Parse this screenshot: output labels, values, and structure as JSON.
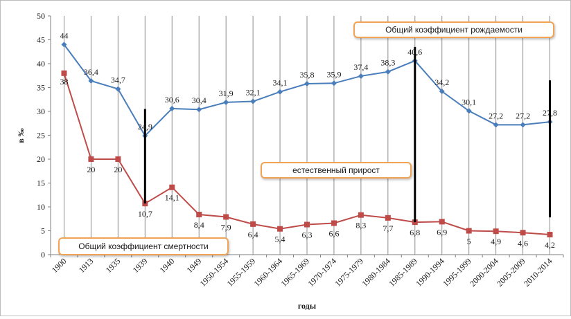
{
  "chart_data": {
    "type": "line",
    "title": "",
    "xlabel": "годы",
    "ylabel": "в ‰",
    "ylim": [
      0,
      50
    ],
    "ytick_step": 5,
    "grid": "vertical",
    "categories": [
      "1900",
      "1913",
      "1935",
      "1939",
      "1940",
      "1949",
      "1950-1954",
      "1955-1959",
      "1960-1964",
      "1965-1969",
      "1970-1974",
      "1975-1979",
      "1980-1984",
      "1985-1989",
      "1990-1994",
      "1995-1999",
      "2000-2004",
      "2005-2009",
      "2010-2014"
    ],
    "series": [
      {
        "name": "Общий коэффициент рождаемости",
        "color": "#4a7ebb",
        "marker": "diamond",
        "values": [
          44,
          36.4,
          34.7,
          24.9,
          30.6,
          30.4,
          31.9,
          32.1,
          34.1,
          35.8,
          35.9,
          37.4,
          38.3,
          40.6,
          34.2,
          30.1,
          27.2,
          27.2,
          27.8
        ],
        "labels": [
          "44",
          "36,4",
          "34,7",
          "24,9",
          "30,6",
          "30,4",
          "31,9",
          "32,1",
          "34,1",
          "35,8",
          "35,9",
          "37,4",
          "38,3",
          "40,6",
          "34,2",
          "30,1",
          "27,2",
          "27,2",
          "27,8"
        ]
      },
      {
        "name": "Общий коэффициент смертности",
        "color": "#be4b48",
        "marker": "square",
        "values": [
          38,
          20,
          20,
          10.7,
          14.1,
          8.4,
          7.9,
          6.4,
          5.4,
          6.3,
          6.6,
          8.3,
          7.7,
          6.8,
          6.9,
          5,
          4.9,
          4.6,
          4.2
        ],
        "labels": [
          "38",
          "20",
          "20",
          "10,7",
          "14,1",
          "8,4",
          "7,9",
          "6,4",
          "5,4",
          "6,3",
          "6,6",
          "8,3",
          "7,7",
          "6,8",
          "6,9",
          "5",
          "4,9",
          "4,6",
          "4,2"
        ]
      }
    ],
    "vertical_bars": [
      {
        "category": "1939",
        "from": 10.7,
        "to": 30.5
      },
      {
        "category": "1985-1989",
        "from": 6.8,
        "to": 43.5
      },
      {
        "category": "2010-2014",
        "from": 7.8,
        "to": 36.5
      }
    ],
    "annotation": "естественный прирост"
  },
  "legend": {
    "birth": "Общий коэффициент рождаемости",
    "growth": "естественный прирост",
    "death": "Общий коэффициент смертности"
  }
}
